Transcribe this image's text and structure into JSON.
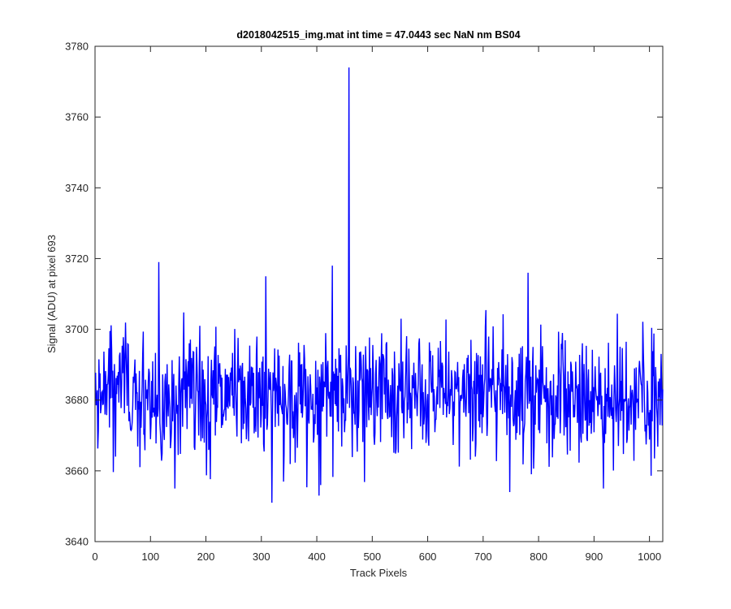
{
  "chart_data": {
    "type": "line",
    "title": "d2018042515_img.mat int time = 47.0443 sec  NaN nm BS04",
    "xlabel": "Track Pixels",
    "ylabel": "Signal (ADU) at pixel 693",
    "xlim": [
      0,
      1024
    ],
    "ylim": [
      3640,
      3780
    ],
    "xticks": [
      0,
      100,
      200,
      300,
      400,
      500,
      600,
      700,
      800,
      900,
      1000
    ],
    "yticks": [
      3640,
      3660,
      3680,
      3700,
      3720,
      3740,
      3760,
      3780
    ],
    "grid": false,
    "series": [
      {
        "color": "#0000ff",
        "generated": {
          "count": 1024,
          "baseline": 3682,
          "noise_amplitude": 9,
          "min_value": 3651,
          "max_value": 3774
        },
        "peaks": [
          {
            "x": 458,
            "y": 3774
          },
          {
            "x": 115,
            "y": 3719
          },
          {
            "x": 428,
            "y": 3718
          },
          {
            "x": 308,
            "y": 3715
          },
          {
            "x": 781,
            "y": 3716
          },
          {
            "x": 319,
            "y": 3651
          },
          {
            "x": 404,
            "y": 3653
          },
          {
            "x": 748,
            "y": 3654
          },
          {
            "x": 144,
            "y": 3655
          }
        ]
      }
    ]
  }
}
